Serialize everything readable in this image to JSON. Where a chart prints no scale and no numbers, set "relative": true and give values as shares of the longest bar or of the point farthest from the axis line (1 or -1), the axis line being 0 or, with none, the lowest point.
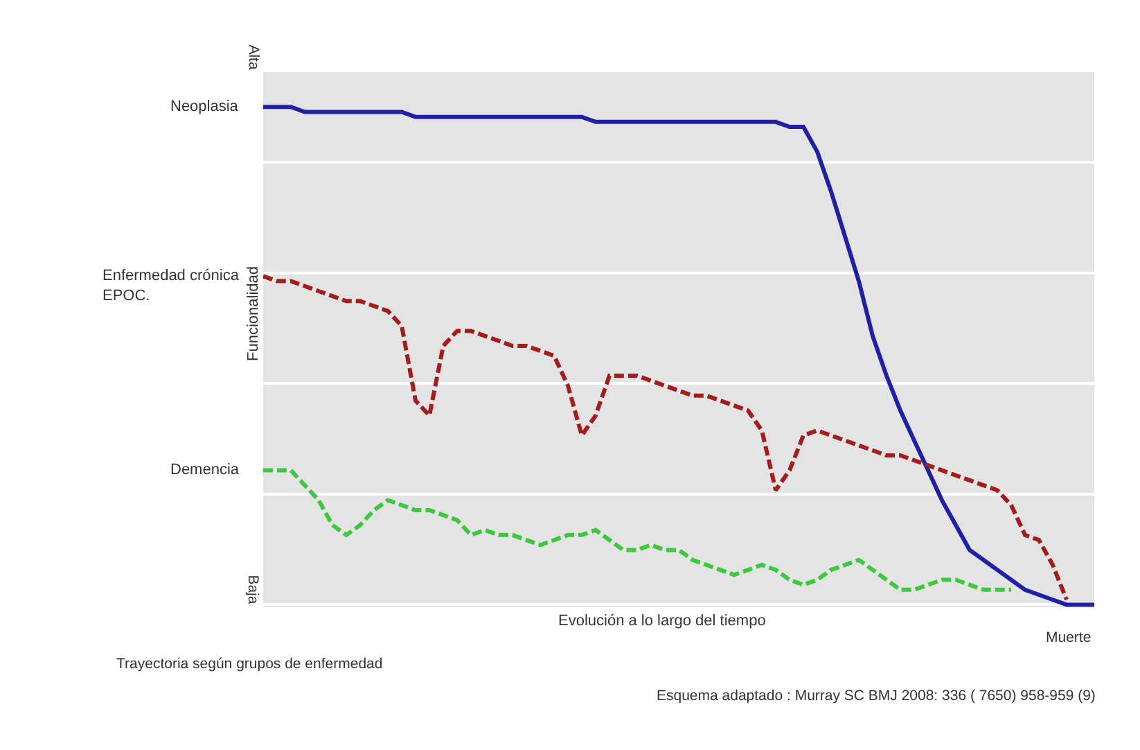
{
  "chart_data": {
    "type": "line",
    "relative": true,
    "grid": "y",
    "legend": false,
    "marker": "none",
    "ylabel": "Funcionalidad",
    "xlabel": "Evolución a lo largo del tiempo",
    "annotations": [
      "Alta",
      "Baja",
      "Muerte",
      "Trayectoria según grupos de enfermedad",
      "Esquema adaptado : Murray SC BMJ 2008: 336 ( 7650) 958-959 (9)"
    ],
    "categories": [
      null,
      null,
      null,
      null,
      null,
      null,
      null,
      null,
      null,
      null,
      null,
      null,
      null,
      null,
      null,
      null,
      null,
      null,
      null,
      null,
      null,
      null,
      null,
      null,
      null,
      null,
      null,
      null,
      null,
      null,
      null,
      null,
      null,
      null,
      null,
      null,
      null,
      null,
      null,
      null,
      null,
      null,
      null,
      null,
      null,
      null,
      null,
      null,
      null,
      null,
      null,
      null,
      null,
      null,
      null,
      null,
      null,
      null,
      null,
      null,
      null
    ],
    "series": [
      {
        "name": "Neoplasia",
        "color": "#1f1fa8",
        "line_style": "solid",
        "values": [
          1.0,
          1.0,
          1.0,
          0.99,
          0.99,
          0.99,
          0.99,
          0.99,
          0.99,
          0.99,
          0.99,
          0.98,
          0.98,
          0.98,
          0.98,
          0.98,
          0.98,
          0.98,
          0.98,
          0.98,
          0.98,
          0.98,
          0.98,
          0.98,
          0.97,
          0.97,
          0.97,
          0.97,
          0.97,
          0.97,
          0.97,
          0.97,
          0.97,
          0.97,
          0.97,
          0.97,
          0.97,
          0.97,
          0.96,
          0.96,
          0.91,
          0.83,
          0.74,
          0.65,
          0.54,
          0.46,
          0.39,
          0.33,
          0.27,
          0.21,
          0.16,
          0.11,
          0.09,
          0.07,
          0.05,
          0.03,
          0.02,
          0.01,
          0.0,
          0.0,
          0.0
        ]
      },
      {
        "name": "Enfermedad crónica\nEPOC.",
        "color": "#a51c1c",
        "line_style": "dashed",
        "values": [
          0.66,
          0.65,
          0.65,
          0.64,
          0.63,
          0.62,
          0.61,
          0.61,
          0.6,
          0.59,
          0.56,
          0.41,
          0.38,
          0.52,
          0.55,
          0.55,
          0.54,
          0.53,
          0.52,
          0.52,
          0.51,
          0.5,
          0.44,
          0.34,
          0.38,
          0.46,
          0.46,
          0.46,
          0.45,
          0.44,
          0.43,
          0.42,
          0.42,
          0.41,
          0.4,
          0.39,
          0.35,
          0.23,
          0.27,
          0.34,
          0.35,
          0.34,
          0.33,
          0.32,
          0.31,
          0.3,
          0.3,
          0.29,
          0.28,
          0.27,
          0.26,
          0.25,
          0.24,
          0.23,
          0.2,
          0.14,
          0.13,
          0.08,
          0.01,
          null,
          null
        ]
      },
      {
        "name": "Demencia",
        "color": "#3fc83f",
        "line_style": "dashed",
        "values": [
          0.27,
          0.27,
          0.27,
          0.24,
          0.21,
          0.16,
          0.14,
          0.16,
          0.19,
          0.21,
          0.2,
          0.19,
          0.19,
          0.18,
          0.17,
          0.14,
          0.15,
          0.14,
          0.14,
          0.13,
          0.12,
          0.13,
          0.14,
          0.14,
          0.15,
          0.13,
          0.11,
          0.11,
          0.12,
          0.11,
          0.11,
          0.09,
          0.08,
          0.07,
          0.06,
          0.07,
          0.08,
          0.07,
          0.05,
          0.04,
          0.05,
          0.07,
          0.08,
          0.09,
          0.07,
          0.05,
          0.03,
          0.03,
          0.04,
          0.05,
          0.05,
          0.04,
          0.03,
          0.03,
          0.03,
          null,
          null,
          null,
          null,
          null,
          null
        ]
      }
    ]
  }
}
